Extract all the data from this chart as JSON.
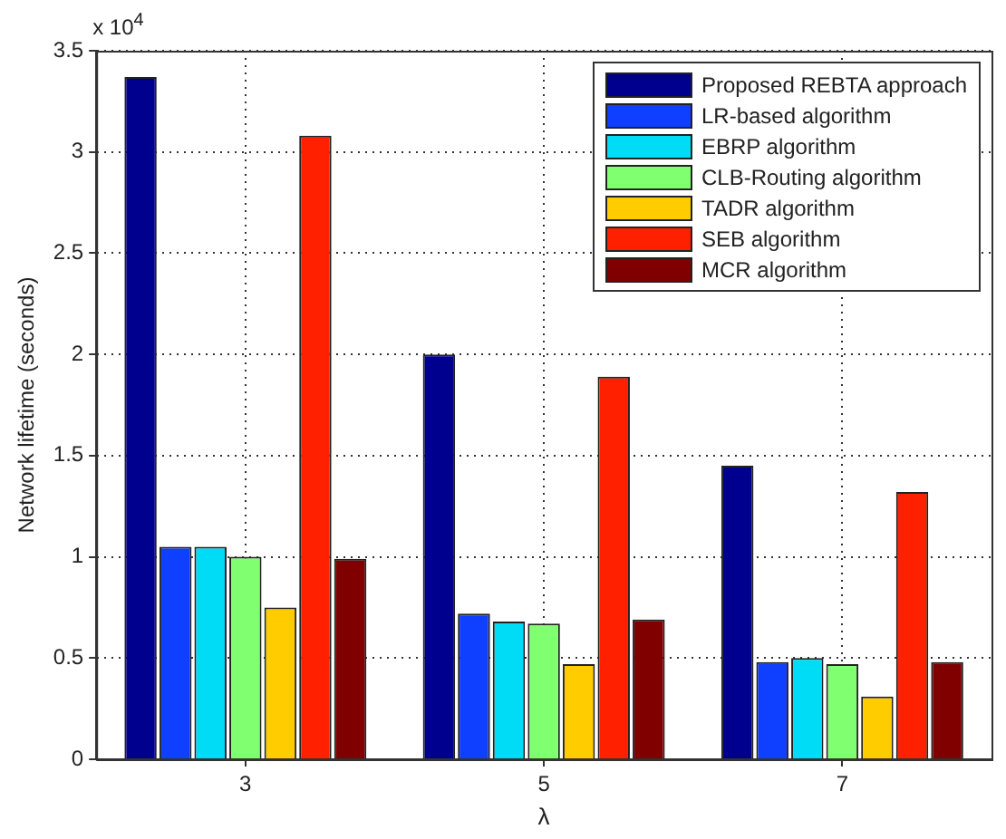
{
  "chart_data": {
    "type": "bar",
    "categories": [
      "3",
      "5",
      "7"
    ],
    "xlabel": "λ",
    "ylabel": "Network lifetime (seconds)",
    "annotations": [
      "x 10$^{4}$"
    ],
    "ylim": [
      0,
      3.5
    ],
    "yticks": [
      0,
      0.5,
      1,
      1.5,
      2,
      2.5,
      3,
      3.5
    ],
    "grid": true,
    "legend": "top right",
    "series": [
      {
        "name": "Proposed REBTA approach",
        "color": "#00008f",
        "values": [
          3.37,
          2.0,
          1.45
        ]
      },
      {
        "name": "LR-based algorithm",
        "color": "#0f3fff",
        "values": [
          1.05,
          0.72,
          0.48
        ]
      },
      {
        "name": "EBRP algorithm",
        "color": "#00dcf5",
        "values": [
          1.05,
          0.68,
          0.5
        ]
      },
      {
        "name": "CLB-Routing algorithm",
        "color": "#80ff70",
        "values": [
          1.0,
          0.67,
          0.47
        ]
      },
      {
        "name": "TADR algorithm",
        "color": "#ffcc00",
        "values": [
          0.75,
          0.47,
          0.31
        ]
      },
      {
        "name": "SEB algorithm",
        "color": "#ff2000",
        "values": [
          3.08,
          1.89,
          1.32
        ]
      },
      {
        "name": "MCR algorithm",
        "color": "#800000",
        "values": [
          0.99,
          0.69,
          0.48
        ]
      }
    ]
  }
}
